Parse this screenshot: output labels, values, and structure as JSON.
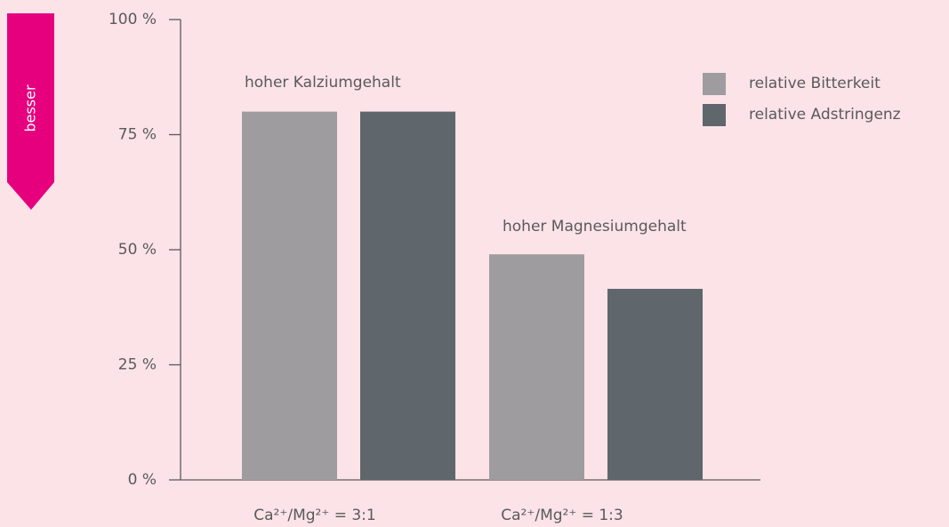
{
  "chart_data": {
    "type": "bar",
    "categories": [
      "Ca²⁺/Mg²⁺ = 3:1",
      "Ca²⁺/Mg²⁺ = 1:3"
    ],
    "series": [
      {
        "name": "relative Bitterkeit",
        "color": "#9e9c9f",
        "values": [
          80,
          49
        ]
      },
      {
        "name": "relative Adstringenz",
        "color": "#5f666c",
        "values": [
          80,
          41.5
        ]
      }
    ],
    "ylim": [
      0,
      100
    ],
    "yticks": [
      {
        "value": 0,
        "label": "0 %"
      },
      {
        "value": 25,
        "label": "25 %"
      },
      {
        "value": 50,
        "label": "50 %"
      },
      {
        "value": 75,
        "label": "75 %"
      },
      {
        "value": 100,
        "label": "100 %"
      }
    ],
    "annotations": [
      "hoher Kalziumgehalt",
      "hoher Magnesiumgehalt"
    ],
    "arrow_label": "besser",
    "legend": "top-right"
  }
}
